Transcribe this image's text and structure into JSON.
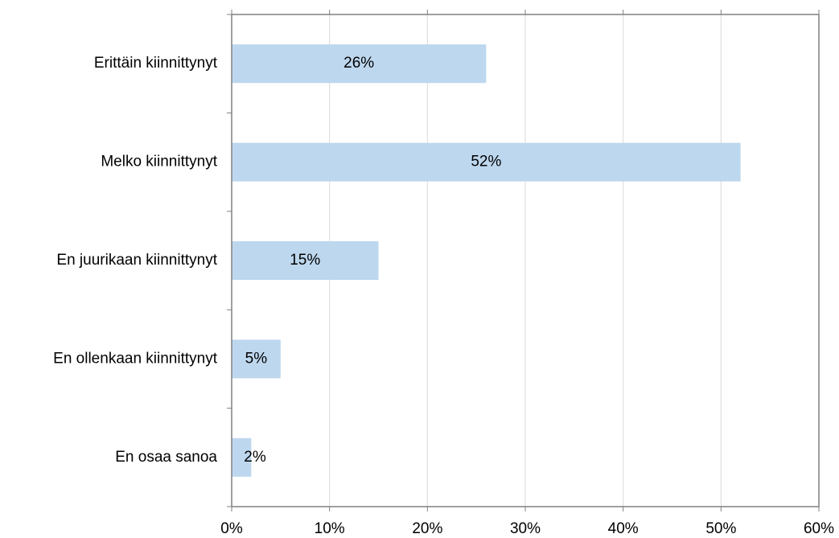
{
  "chart_data": {
    "type": "hbar",
    "categories": [
      "Erittäin kiinnittynyt",
      "Melko kiinnittynyt",
      "En juurikaan kiinnittynyt",
      "En ollenkaan kiinnittynyt",
      "En osaa sanoa"
    ],
    "values": [
      26,
      52,
      15,
      5,
      2
    ],
    "value_labels": [
      "26%",
      "52%",
      "15%",
      "5%",
      "2%"
    ],
    "color": "#bdd7ee",
    "xlim": [
      0,
      60
    ],
    "xticks": [
      {
        "value": 0,
        "label": "0%"
      },
      {
        "value": 10,
        "label": "10%"
      },
      {
        "value": 20,
        "label": "20%"
      },
      {
        "value": 30,
        "label": "30%"
      },
      {
        "value": 40,
        "label": "40%"
      },
      {
        "value": 50,
        "label": "50%"
      },
      {
        "value": 60,
        "label": "60%"
      }
    ],
    "grid": true
  }
}
